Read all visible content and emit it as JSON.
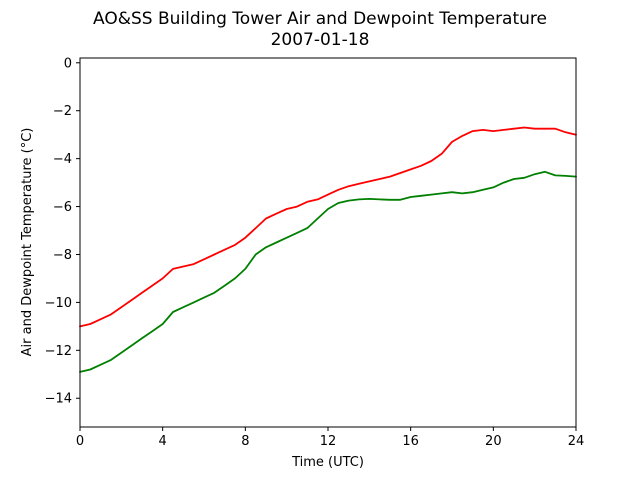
{
  "chart_data": {
    "type": "line",
    "title": "AO&SS Building Tower Air and Dewpoint Temperature",
    "subtitle": "2007-01-18",
    "xlabel": "Time (UTC)",
    "ylabel": "Air and Dewpoint Temperature (°C)",
    "xlim": [
      0,
      24
    ],
    "ylim": [
      -15.2,
      0.2
    ],
    "xticks": [
      0,
      4,
      8,
      12,
      16,
      20,
      24
    ],
    "xtick_labels": [
      "0",
      "4",
      "8",
      "12",
      "16",
      "20",
      "24"
    ],
    "yticks": [
      0,
      -2,
      -4,
      -6,
      -8,
      -10,
      -12,
      -14
    ],
    "ytick_labels": [
      "0",
      "−2",
      "−4",
      "−6",
      "−8",
      "−10",
      "−12",
      "−14"
    ],
    "grid": false,
    "series": [
      {
        "color": "#ff0000",
        "x": [
          0,
          0.5,
          1,
          1.5,
          2,
          2.5,
          3,
          3.5,
          4,
          4.5,
          5,
          5.5,
          6,
          6.5,
          7,
          7.5,
          8,
          8.5,
          9,
          9.5,
          10,
          10.5,
          11,
          11.5,
          12,
          12.5,
          13,
          13.5,
          14,
          14.5,
          15,
          15.5,
          16,
          16.5,
          17,
          17.5,
          18,
          18.5,
          19,
          19.5,
          20,
          20.5,
          21,
          21.5,
          22,
          22.5,
          23,
          23.5,
          24
        ],
        "y": [
          -11.0,
          -10.9,
          -10.7,
          -10.5,
          -10.2,
          -9.9,
          -9.6,
          -9.3,
          -9.0,
          -8.6,
          -8.5,
          -8.4,
          -8.2,
          -8.0,
          -7.8,
          -7.6,
          -7.3,
          -6.9,
          -6.5,
          -6.3,
          -6.1,
          -6.0,
          -5.8,
          -5.7,
          -5.5,
          -5.3,
          -5.15,
          -5.05,
          -4.95,
          -4.85,
          -4.75,
          -4.6,
          -4.45,
          -4.3,
          -4.1,
          -3.8,
          -3.3,
          -3.05,
          -2.85,
          -2.8,
          -2.85,
          -2.8,
          -2.75,
          -2.7,
          -2.75,
          -2.75,
          -2.75,
          -2.9,
          -3.0
        ]
      },
      {
        "color": "#008000",
        "x": [
          0,
          0.5,
          1,
          1.5,
          2,
          2.5,
          3,
          3.5,
          4,
          4.5,
          5,
          5.5,
          6,
          6.5,
          7,
          7.5,
          8,
          8.5,
          9,
          9.5,
          10,
          10.5,
          11,
          11.5,
          12,
          12.5,
          13,
          13.5,
          14,
          14.5,
          15,
          15.5,
          16,
          16.5,
          17,
          17.5,
          18,
          18.5,
          19,
          19.5,
          20,
          20.5,
          21,
          21.5,
          22,
          22.5,
          23,
          23.5,
          24
        ],
        "y": [
          -12.9,
          -12.8,
          -12.6,
          -12.4,
          -12.1,
          -11.8,
          -11.5,
          -11.2,
          -10.9,
          -10.4,
          -10.2,
          -10.0,
          -9.8,
          -9.6,
          -9.3,
          -9.0,
          -8.6,
          -8.0,
          -7.7,
          -7.5,
          -7.3,
          -7.1,
          -6.9,
          -6.5,
          -6.1,
          -5.85,
          -5.75,
          -5.7,
          -5.68,
          -5.7,
          -5.72,
          -5.72,
          -5.6,
          -5.55,
          -5.5,
          -5.45,
          -5.4,
          -5.45,
          -5.4,
          -5.3,
          -5.2,
          -5.0,
          -4.85,
          -4.8,
          -4.65,
          -4.55,
          -4.7,
          -4.72,
          -4.75
        ]
      }
    ]
  }
}
